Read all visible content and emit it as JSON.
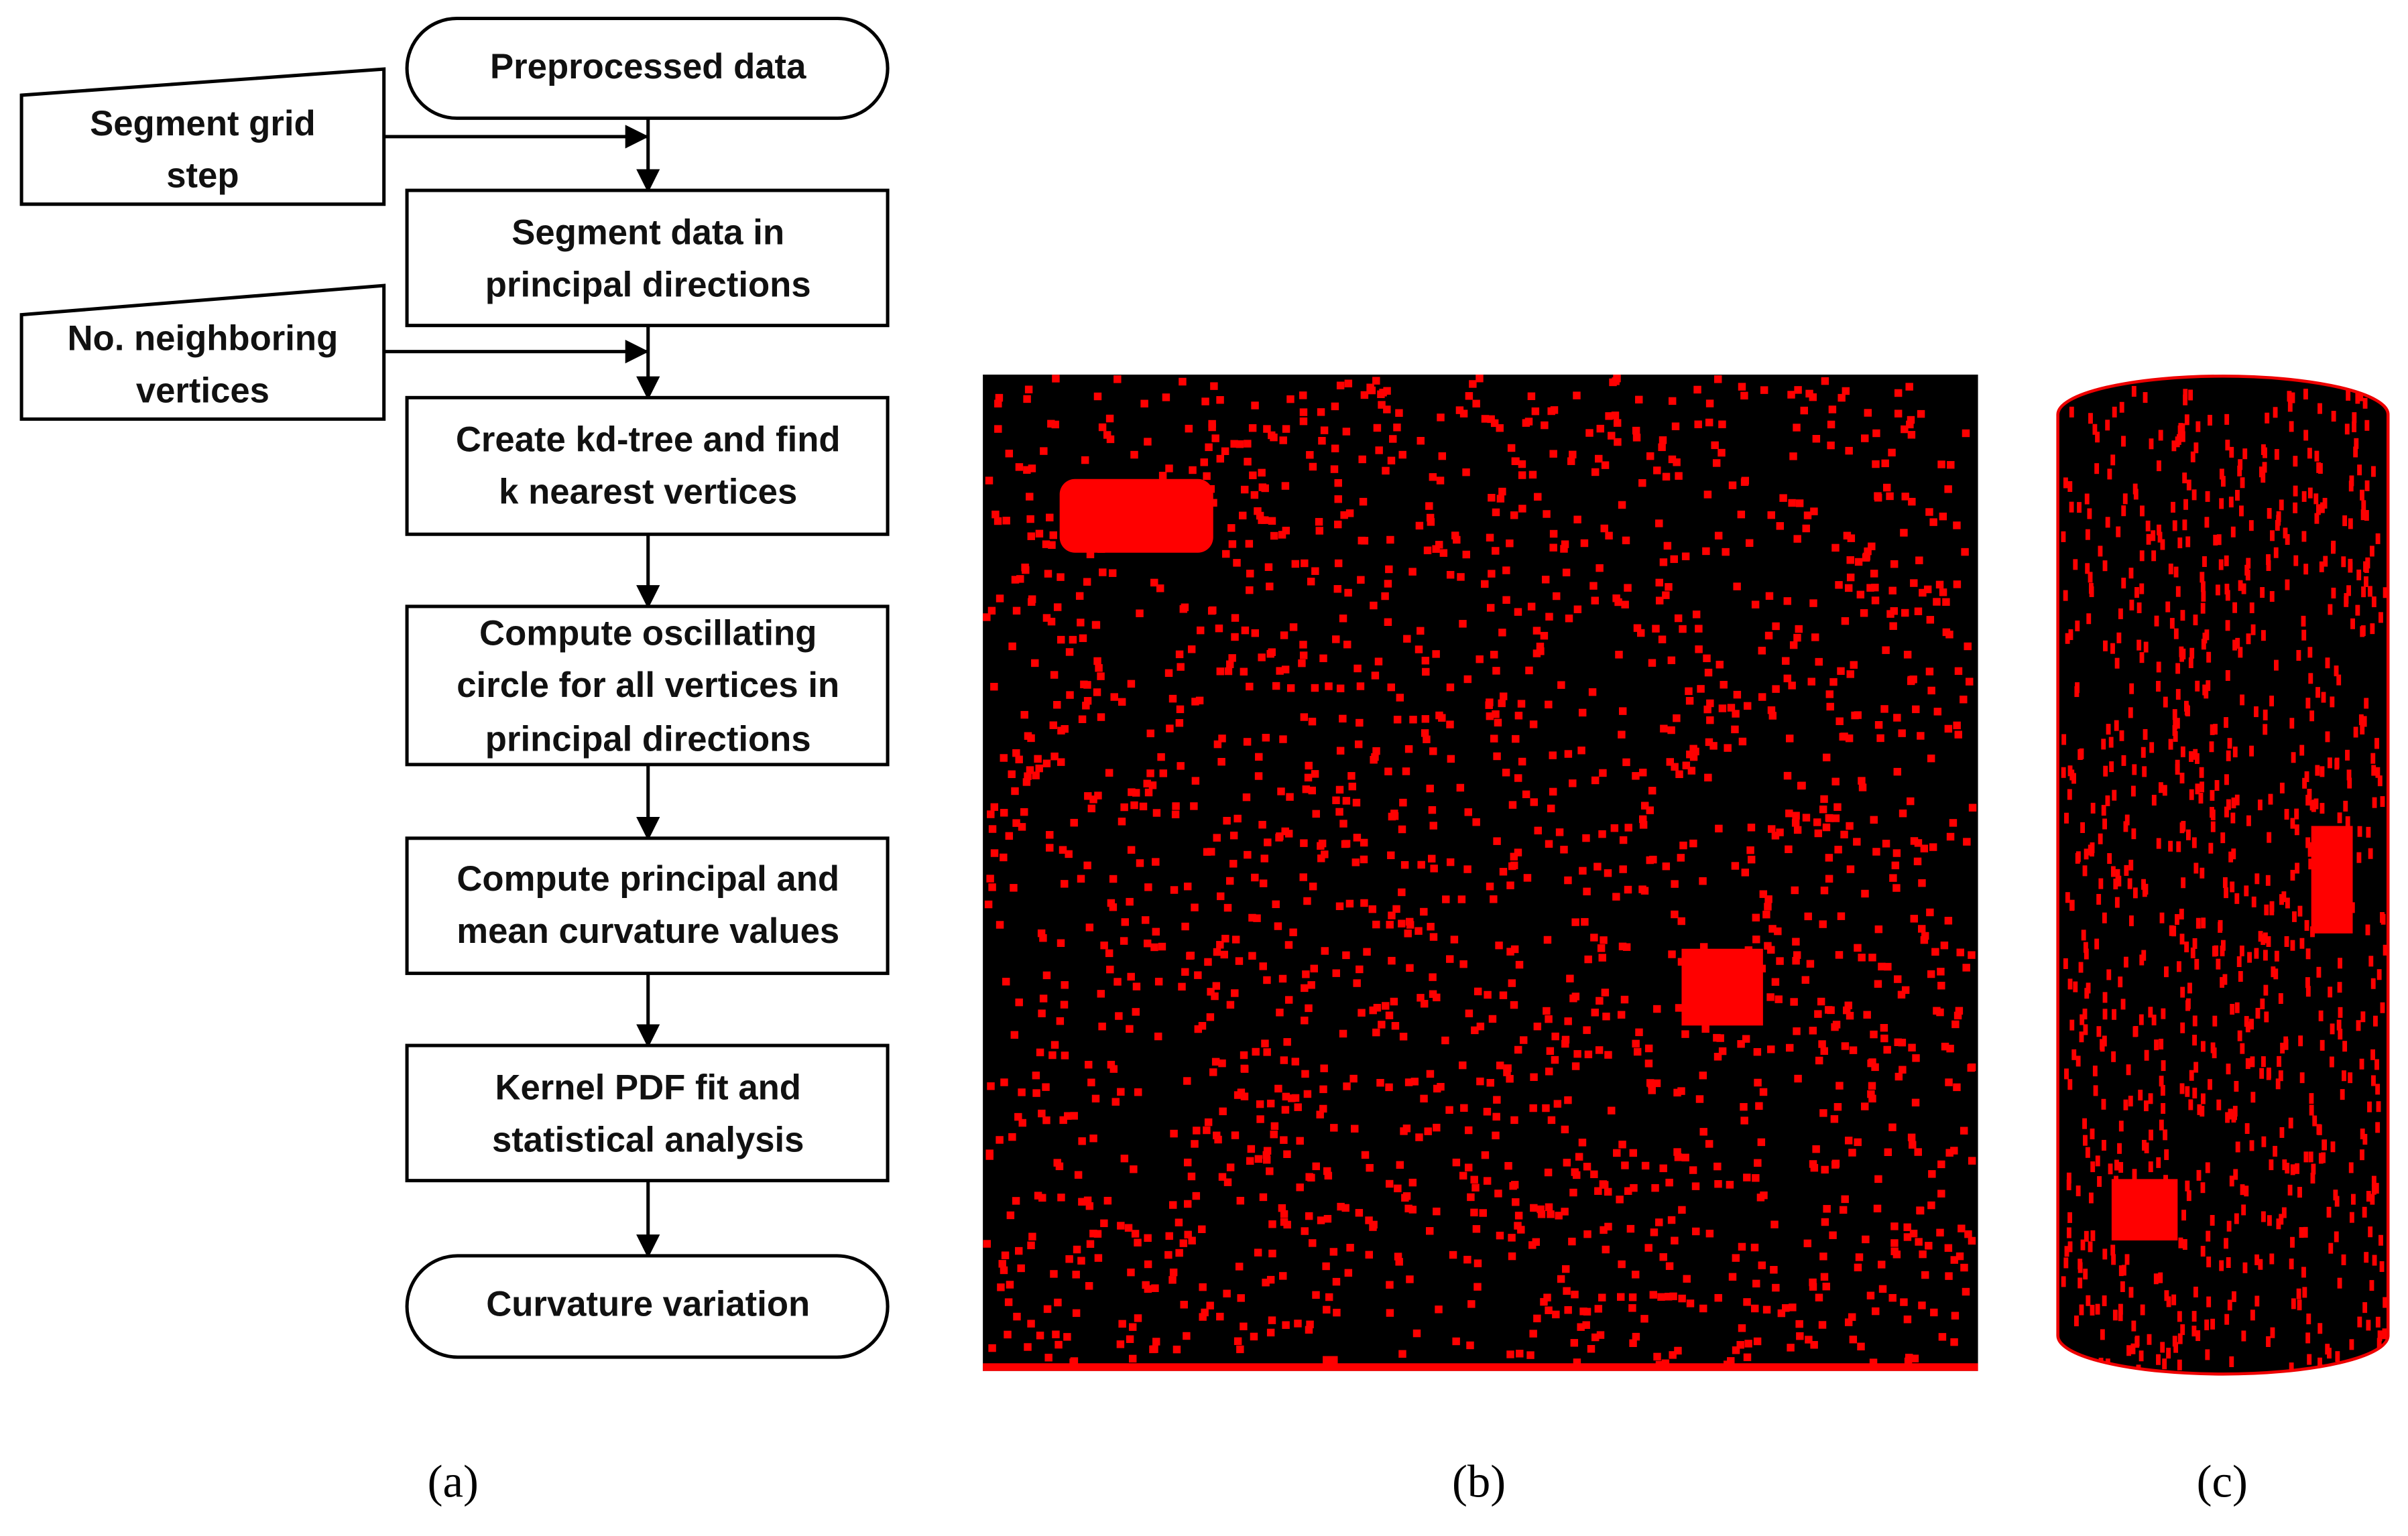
{
  "nodes": [
    {
      "lines": [
        "Preprocessed data"
      ]
    },
    {
      "lines": [
        "Segment data in",
        "principal directions"
      ]
    },
    {
      "lines": [
        "Create kd-tree and find",
        "k nearest vertices"
      ]
    },
    {
      "lines": [
        "Compute oscillating",
        "circle for all vertices in",
        "principal directions"
      ]
    },
    {
      "lines": [
        "Compute principal and",
        "mean curvature values"
      ]
    },
    {
      "lines": [
        "Kernel PDF fit and",
        "statistical analysis"
      ]
    },
    {
      "lines": [
        "Curvature variation"
      ]
    }
  ],
  "inputs": [
    {
      "lines": [
        "Segment grid",
        "step"
      ]
    },
    {
      "lines": [
        "No. neighboring",
        "vertices"
      ]
    }
  ],
  "panels": [
    {
      "label": "(a)"
    },
    {
      "label": "(b)"
    },
    {
      "label": "(c)"
    }
  ]
}
